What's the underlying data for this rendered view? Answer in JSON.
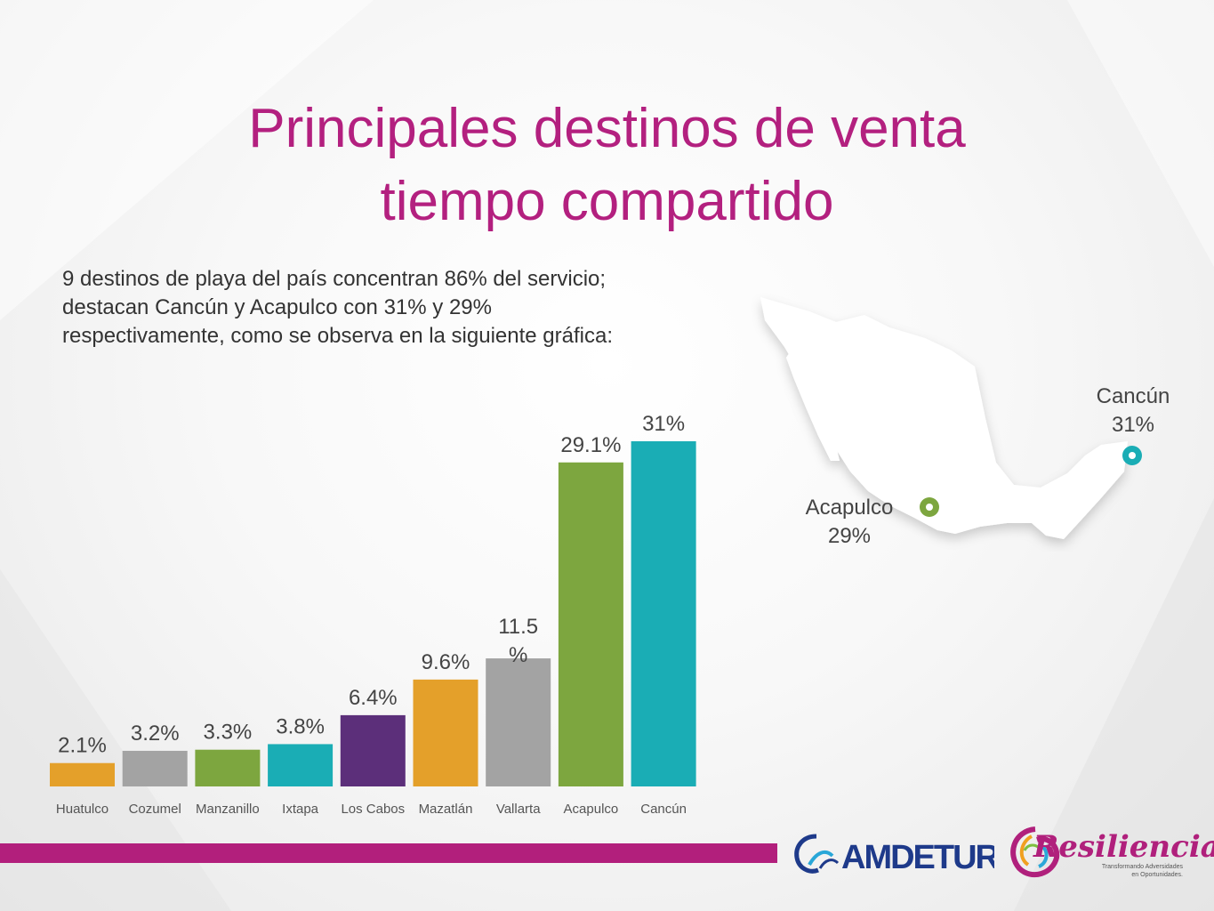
{
  "title": {
    "line1": "Principales destinos de venta",
    "line2": "tiempo compartido"
  },
  "intro": "9 destinos de playa del país concentran 86% del servicio; destacan Cancún y Acapulco con 31% y 29% respectivamente, como se observa en la siguiente gráfica:",
  "colors": {
    "title": "#b3207f",
    "footer_bar": "#b21f7c"
  },
  "chart_data": {
    "type": "bar",
    "categories": [
      "Huatulco",
      "Cozumel",
      "Manzanillo",
      "Ixtapa",
      "Los Cabos",
      "Mazatlán",
      "Vallarta",
      "Acapulco",
      "Cancún"
    ],
    "values": [
      2.1,
      3.2,
      3.3,
      3.8,
      6.4,
      9.6,
      11.5,
      29.1,
      31
    ],
    "value_labels": [
      "2.1%",
      "3.2%",
      "3.3%",
      "3.8%",
      "6.4%",
      "9.6%",
      "11.5\n%",
      "29.1%",
      "31%"
    ],
    "colors": [
      "#e4a02a",
      "#a3a3a3",
      "#7da63f",
      "#1aadb5",
      "#5c2f7a",
      "#e4a02a",
      "#a3a3a3",
      "#7da63f",
      "#1aadb5"
    ],
    "ylim": [
      0,
      31
    ],
    "grid": false,
    "title": "",
    "xlabel": "",
    "ylabel": ""
  },
  "map": {
    "icon": "mexico-map-icon",
    "cancun": {
      "name": "Cancún",
      "value": "31%",
      "color": "#1aadb5"
    },
    "acapulco": {
      "name": "Acapulco",
      "value": "29%",
      "color": "#7da63f"
    }
  },
  "logos": {
    "amdetur": "AMDETUR",
    "resiliencia": "Resiliencia",
    "resiliencia_tagline_1": "Transformando Adversidades",
    "resiliencia_tagline_2": "en Oportunidades."
  }
}
